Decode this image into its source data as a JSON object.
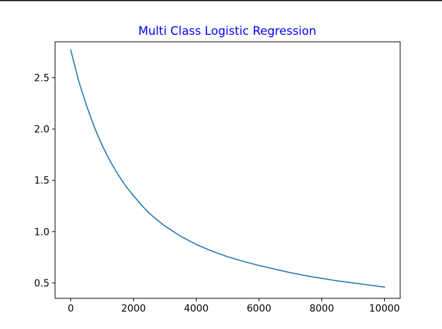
{
  "chart_data": {
    "type": "line",
    "title": "Multi Class Logistic Regression",
    "title_color": "#0000ff",
    "xlabel": "",
    "ylabel": "",
    "xlim": [
      -500,
      10500
    ],
    "ylim": [
      0.35,
      2.85
    ],
    "xticks": [
      0,
      2000,
      4000,
      6000,
      8000,
      10000
    ],
    "yticks": [
      0.5,
      1.0,
      1.5,
      2.0,
      2.5
    ],
    "xtick_labels": [
      "0",
      "2000",
      "4000",
      "6000",
      "8000",
      "10000"
    ],
    "ytick_labels": [
      "0.5",
      "1.0",
      "1.5",
      "2.0",
      "2.5"
    ],
    "grid": false,
    "legend": "none",
    "series": [
      {
        "color": "#1f77b4",
        "x": [
          0,
          250,
          500,
          750,
          1000,
          1250,
          1500,
          1750,
          2000,
          2250,
          2500,
          2750,
          3000,
          3500,
          4000,
          4500,
          5000,
          5500,
          6000,
          6500,
          7000,
          7500,
          8000,
          8500,
          9000,
          9500,
          10000
        ],
        "y": [
          2.77,
          2.47,
          2.23,
          2.02,
          1.84,
          1.69,
          1.56,
          1.445,
          1.35,
          1.26,
          1.18,
          1.115,
          1.055,
          0.955,
          0.875,
          0.81,
          0.755,
          0.71,
          0.67,
          0.635,
          0.6,
          0.57,
          0.545,
          0.52,
          0.5,
          0.48,
          0.46
        ]
      }
    ]
  }
}
